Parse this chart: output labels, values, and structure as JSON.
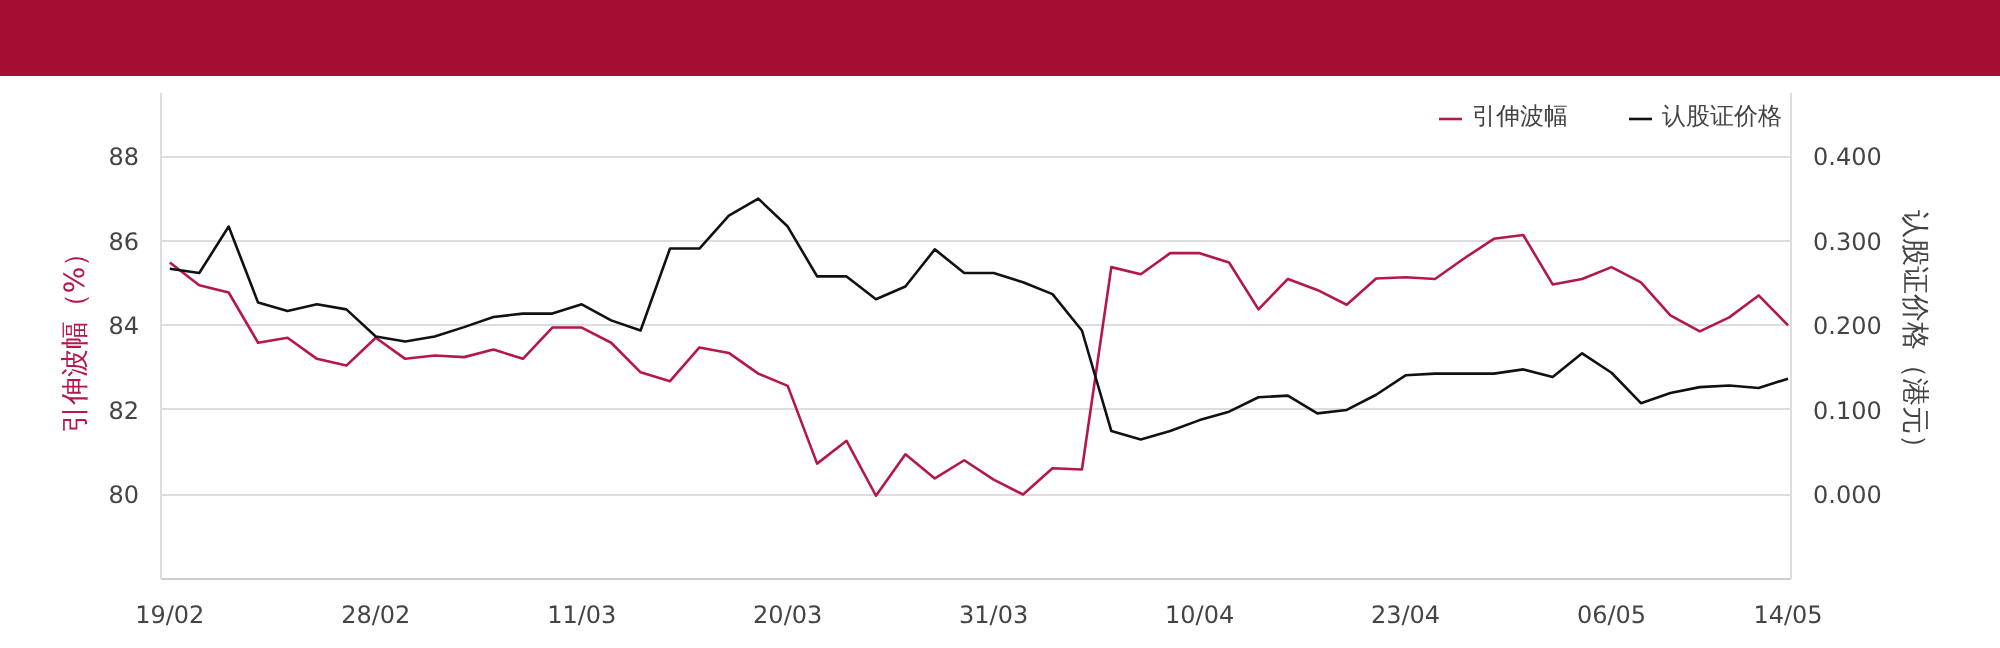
{
  "chart_data": {
    "type": "line",
    "ylabel": "引伸波幅（%）",
    "y2label": "认股证价格（港元）",
    "categories": [
      "19/02",
      null,
      null,
      null,
      null,
      null,
      null,
      "28/02",
      null,
      null,
      null,
      null,
      null,
      null,
      "11/03",
      null,
      null,
      null,
      null,
      null,
      null,
      "20/03",
      null,
      null,
      null,
      null,
      null,
      null,
      "31/03",
      null,
      null,
      null,
      null,
      null,
      null,
      "10/04",
      null,
      null,
      null,
      null,
      null,
      null,
      "23/04",
      null,
      null,
      null,
      null,
      null,
      null,
      "06/05",
      null,
      null,
      null,
      null,
      null,
      "14/05"
    ],
    "series": [
      {
        "name": "引伸波幅",
        "color": "#b5174a",
        "values": [
          85.49,
          84.95,
          84.78,
          83.59,
          83.71,
          83.21,
          83.05,
          83.71,
          83.21,
          83.29,
          83.25,
          83.43,
          83.21,
          83.95,
          83.95,
          83.59,
          82.89,
          82.68,
          83.48,
          83.35,
          82.86,
          82.57,
          80.73,
          81.27,
          79.97,
          80.95,
          80.38,
          80.81,
          80.35,
          80.0,
          80.62,
          80.59,
          85.38,
          85.21,
          85.71,
          85.71,
          85.49,
          84.38,
          85.1,
          84.84,
          84.49,
          85.11,
          85.14,
          85.1,
          85.59,
          86.05,
          86.14,
          84.97,
          85.1,
          85.38,
          85.02,
          84.24,
          83.86,
          84.19,
          84.71,
          84.0
        ]
      },
      {
        "name": "认股证价格",
        "color": "#111111",
        "axis": "y2",
        "values": [
          0.267,
          0.262,
          0.317,
          0.227,
          0.217,
          0.225,
          0.219,
          0.187,
          0.181,
          0.187,
          0.198,
          0.21,
          0.214,
          0.214,
          0.225,
          0.206,
          0.194,
          0.291,
          0.291,
          0.33,
          0.35,
          0.317,
          0.258,
          0.258,
          0.231,
          0.246,
          0.29,
          0.262,
          0.262,
          0.251,
          0.237,
          0.194,
          0.075,
          0.065,
          0.075,
          0.088,
          0.098,
          0.115,
          0.117,
          0.096,
          0.1,
          0.118,
          0.141,
          0.143,
          0.143,
          0.143,
          0.148,
          0.139,
          0.167,
          0.144,
          0.108,
          0.12,
          0.127,
          0.129,
          0.126,
          0.137
        ]
      }
    ],
    "ylim": [
      78,
      89.5
    ],
    "yticks": [
      80,
      82,
      84,
      86,
      88
    ],
    "y2lim": [
      -0.1,
      0.475
    ],
    "y2ticks": [
      {
        "value": 0,
        "label": "0.000"
      },
      {
        "value": 0.1,
        "label": "0.100"
      },
      {
        "value": 0.2,
        "label": "0.200"
      },
      {
        "value": 0.3,
        "label": "0.300"
      },
      {
        "value": 0.4,
        "label": "0.400"
      }
    ],
    "grid": "y",
    "legend": "top right",
    "marker": "none",
    "line_style": "solid"
  }
}
